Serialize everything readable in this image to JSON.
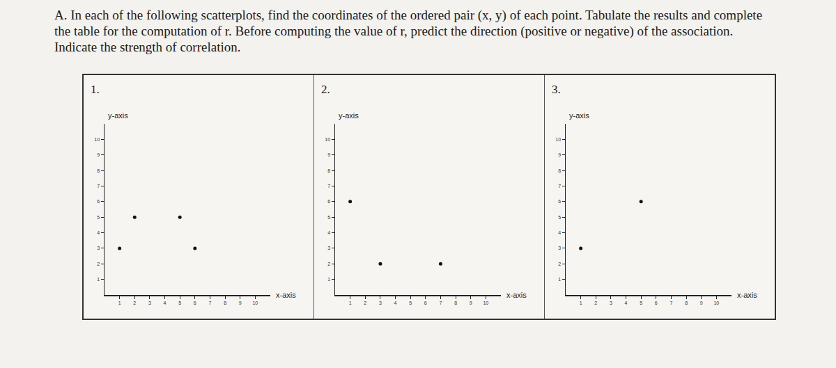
{
  "instructions": "A. In each of the following scatterplots, find the coordinates of the ordered pair (x, y) of each point. Tabulate the results and complete the table for the computation of r. Before computing the value of r, predict the direction (positive or negative) of the association. Indicate the strength of correlation.",
  "chart_data": [
    {
      "type": "scatter",
      "title": "1.",
      "xlabel": "x-axis",
      "ylabel": "y-axis",
      "x": [
        1,
        2,
        5,
        6
      ],
      "values": [
        3,
        5,
        5,
        3
      ],
      "color": "#111111",
      "marker": "circle",
      "xlim": [
        0,
        11
      ],
      "ylim": [
        0,
        11
      ],
      "xticks": [
        1,
        2,
        3,
        4,
        5,
        6,
        7,
        8,
        9,
        10
      ],
      "yticks": [
        1,
        2,
        3,
        4,
        5,
        6,
        7,
        8,
        9,
        10
      ],
      "grid": false
    },
    {
      "type": "scatter",
      "title": "2.",
      "xlabel": "x-axis",
      "ylabel": "y-axis",
      "x": [
        1,
        3,
        7
      ],
      "values": [
        6,
        2,
        2
      ],
      "color": "#111111",
      "marker": "circle",
      "xlim": [
        0,
        11
      ],
      "ylim": [
        0,
        11
      ],
      "xticks": [
        1,
        2,
        3,
        4,
        5,
        6,
        7,
        8,
        9,
        10
      ],
      "yticks": [
        1,
        2,
        3,
        4,
        5,
        6,
        7,
        8,
        9,
        10
      ],
      "grid": false
    },
    {
      "type": "scatter",
      "title": "3.",
      "xlabel": "x-axis",
      "ylabel": "y-axis",
      "x": [
        1,
        5
      ],
      "values": [
        3,
        6
      ],
      "color": "#111111",
      "marker": "circle",
      "xlim": [
        0,
        11
      ],
      "ylim": [
        0,
        11
      ],
      "xticks": [
        1,
        2,
        3,
        4,
        5,
        6,
        7,
        8,
        9,
        10
      ],
      "yticks": [
        1,
        2,
        3,
        4,
        5,
        6,
        7,
        8,
        9,
        10
      ],
      "grid": false
    }
  ]
}
